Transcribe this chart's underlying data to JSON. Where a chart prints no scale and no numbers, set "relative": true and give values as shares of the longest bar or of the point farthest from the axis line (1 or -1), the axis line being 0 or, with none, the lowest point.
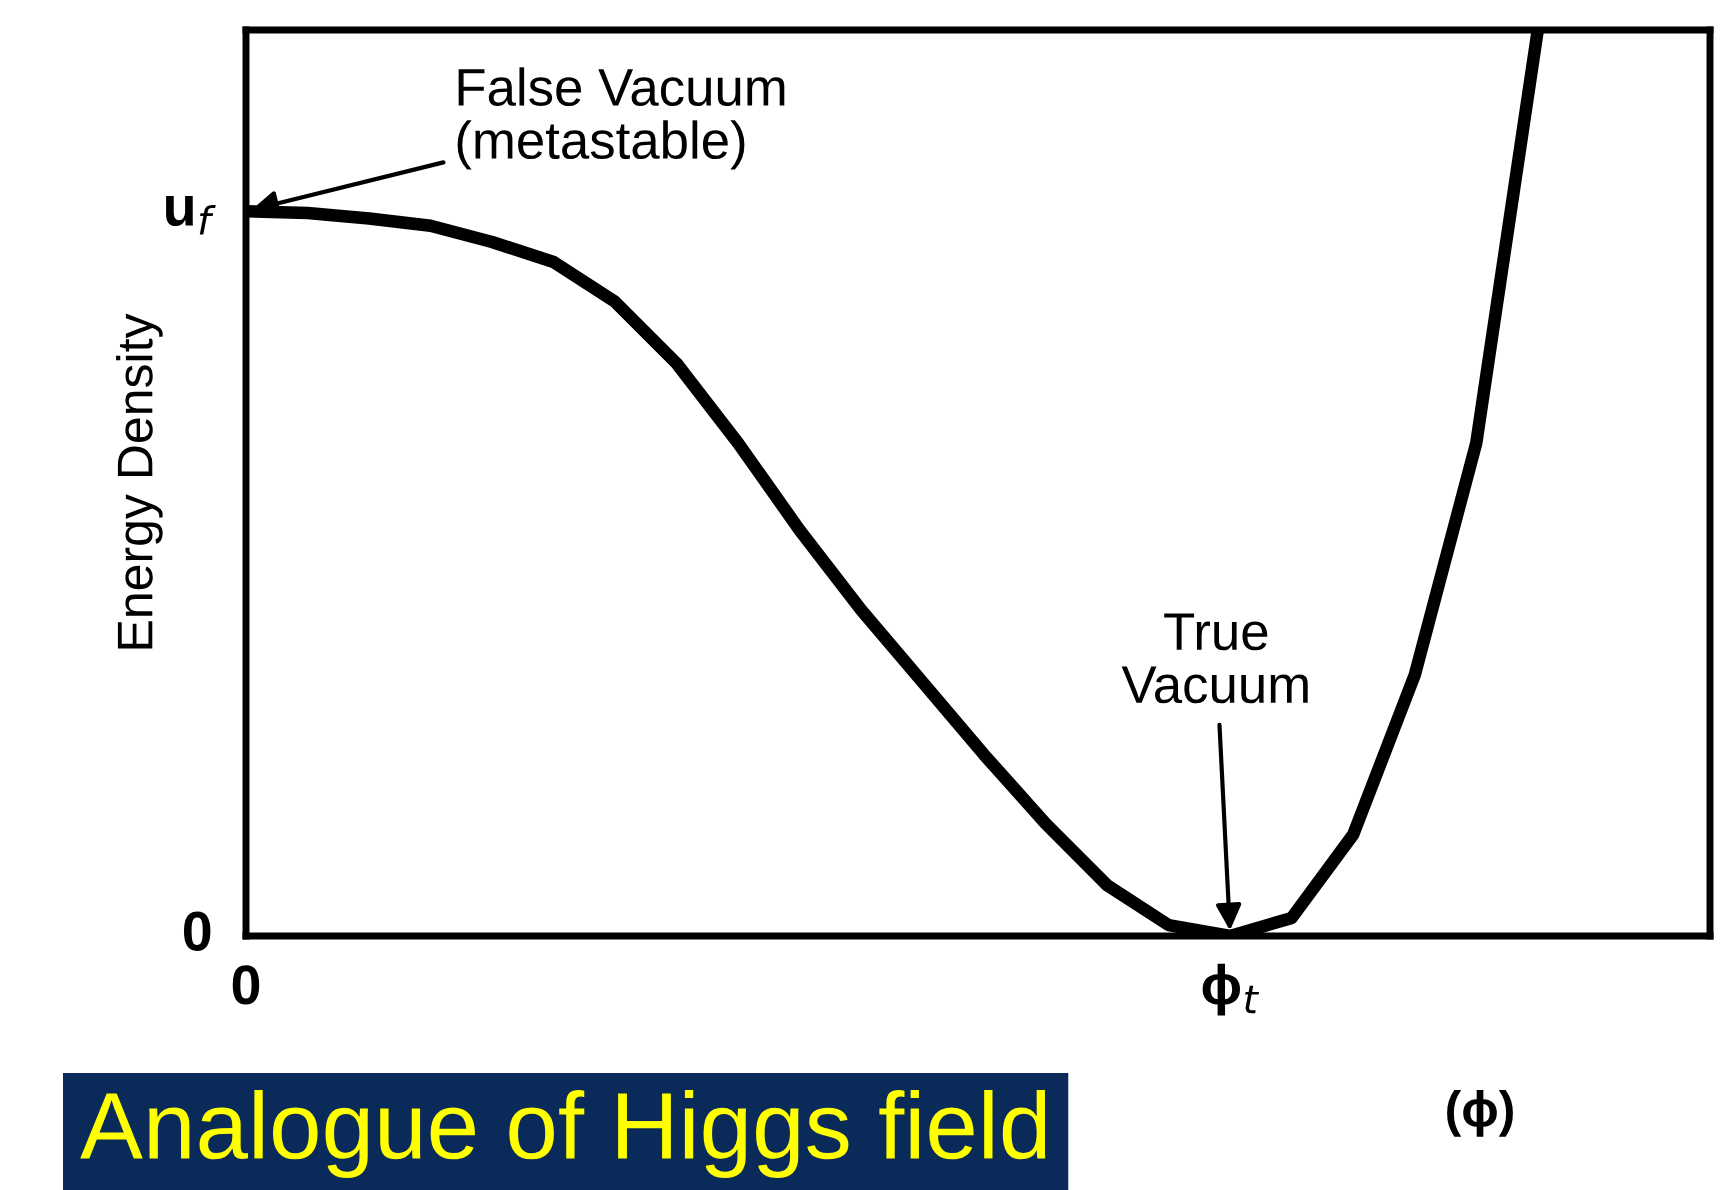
{
  "chart_data": {
    "type": "line",
    "relative": true,
    "xlabel": "(ϕ)",
    "ylabel": "Energy Density",
    "categories": [
      "0",
      null,
      null,
      null,
      null,
      null,
      null,
      null,
      null,
      null,
      null,
      null,
      null,
      null,
      null,
      null,
      "ϕ$_{t}$",
      null,
      null,
      null,
      null,
      null,
      null,
      null
    ],
    "series": [
      {
        "color": "#000000",
        "values": [
          0.8,
          0.798,
          0.792,
          0.784,
          0.766,
          0.744,
          0.7,
          0.632,
          0.544,
          0.448,
          0.36,
          0.28,
          0.2,
          0.124,
          0.056,
          0.012,
          0,
          0.02,
          0.112,
          0.288,
          0.544,
          1,
          null,
          null
        ]
      }
    ],
    "annotations": [
      {
        "text": "False Vacuum\n(metastable)",
        "x": "0",
        "y": 0.8
      },
      {
        "text": "True\nVacuum",
        "x": "ϕ$_{t}$",
        "y": 0
      },
      "u$_{f}$",
      "0",
      "Analogue of Higgs field"
    ],
    "grid": false,
    "marker": "none",
    "line_style": "solid"
  }
}
